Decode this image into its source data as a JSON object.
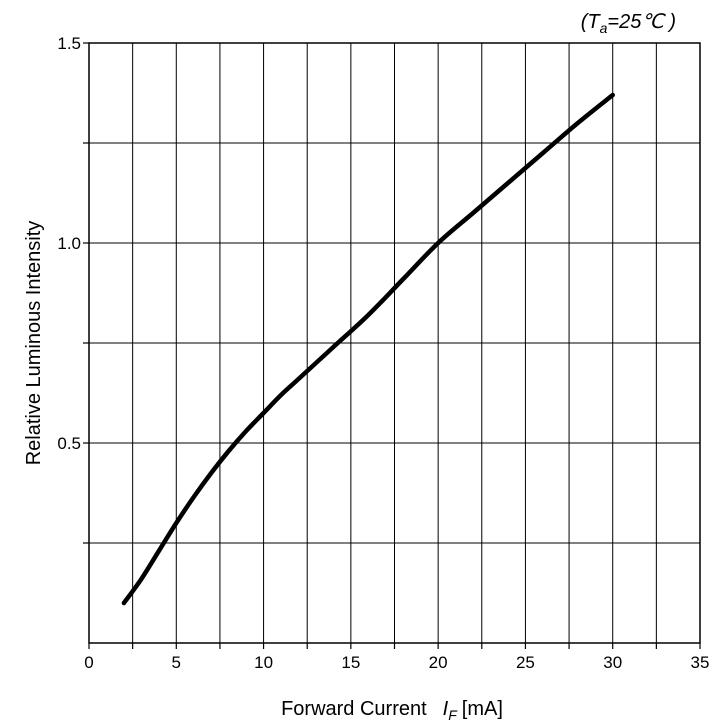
{
  "chart_data": {
    "type": "line",
    "condition": {
      "open": "(T",
      "sub": "a",
      "rest": "=25℃ )"
    },
    "xlabel": {
      "main": "Forward Current",
      "var": "I",
      "sub": "F",
      "unit": "[mA]"
    },
    "ylabel": "Relative Luminous Intensity",
    "xlim": [
      0,
      35
    ],
    "ylim": [
      0,
      1.5
    ],
    "x_ticks": [
      0,
      5,
      10,
      15,
      20,
      25,
      30,
      35
    ],
    "x_tick_labels": [
      "0",
      "5",
      "10",
      "15",
      "20",
      "25",
      "30",
      "35"
    ],
    "y_ticks": [
      0.5,
      1.0,
      1.5
    ],
    "y_tick_labels": [
      "0.5",
      "1.0",
      "1.5"
    ],
    "x_grid_step": 2.5,
    "y_grid_step": 0.25,
    "grid": true,
    "series": [
      {
        "x": [
          2,
          3,
          4,
          5,
          6,
          7,
          8,
          9,
          10,
          11,
          12,
          14,
          16,
          18,
          20,
          22,
          24,
          26,
          28,
          30
        ],
        "y": [
          0.1,
          0.16,
          0.23,
          0.3,
          0.365,
          0.425,
          0.48,
          0.53,
          0.575,
          0.62,
          0.66,
          0.74,
          0.82,
          0.91,
          1.0,
          1.075,
          1.15,
          1.225,
          1.3,
          1.37
        ]
      }
    ]
  }
}
